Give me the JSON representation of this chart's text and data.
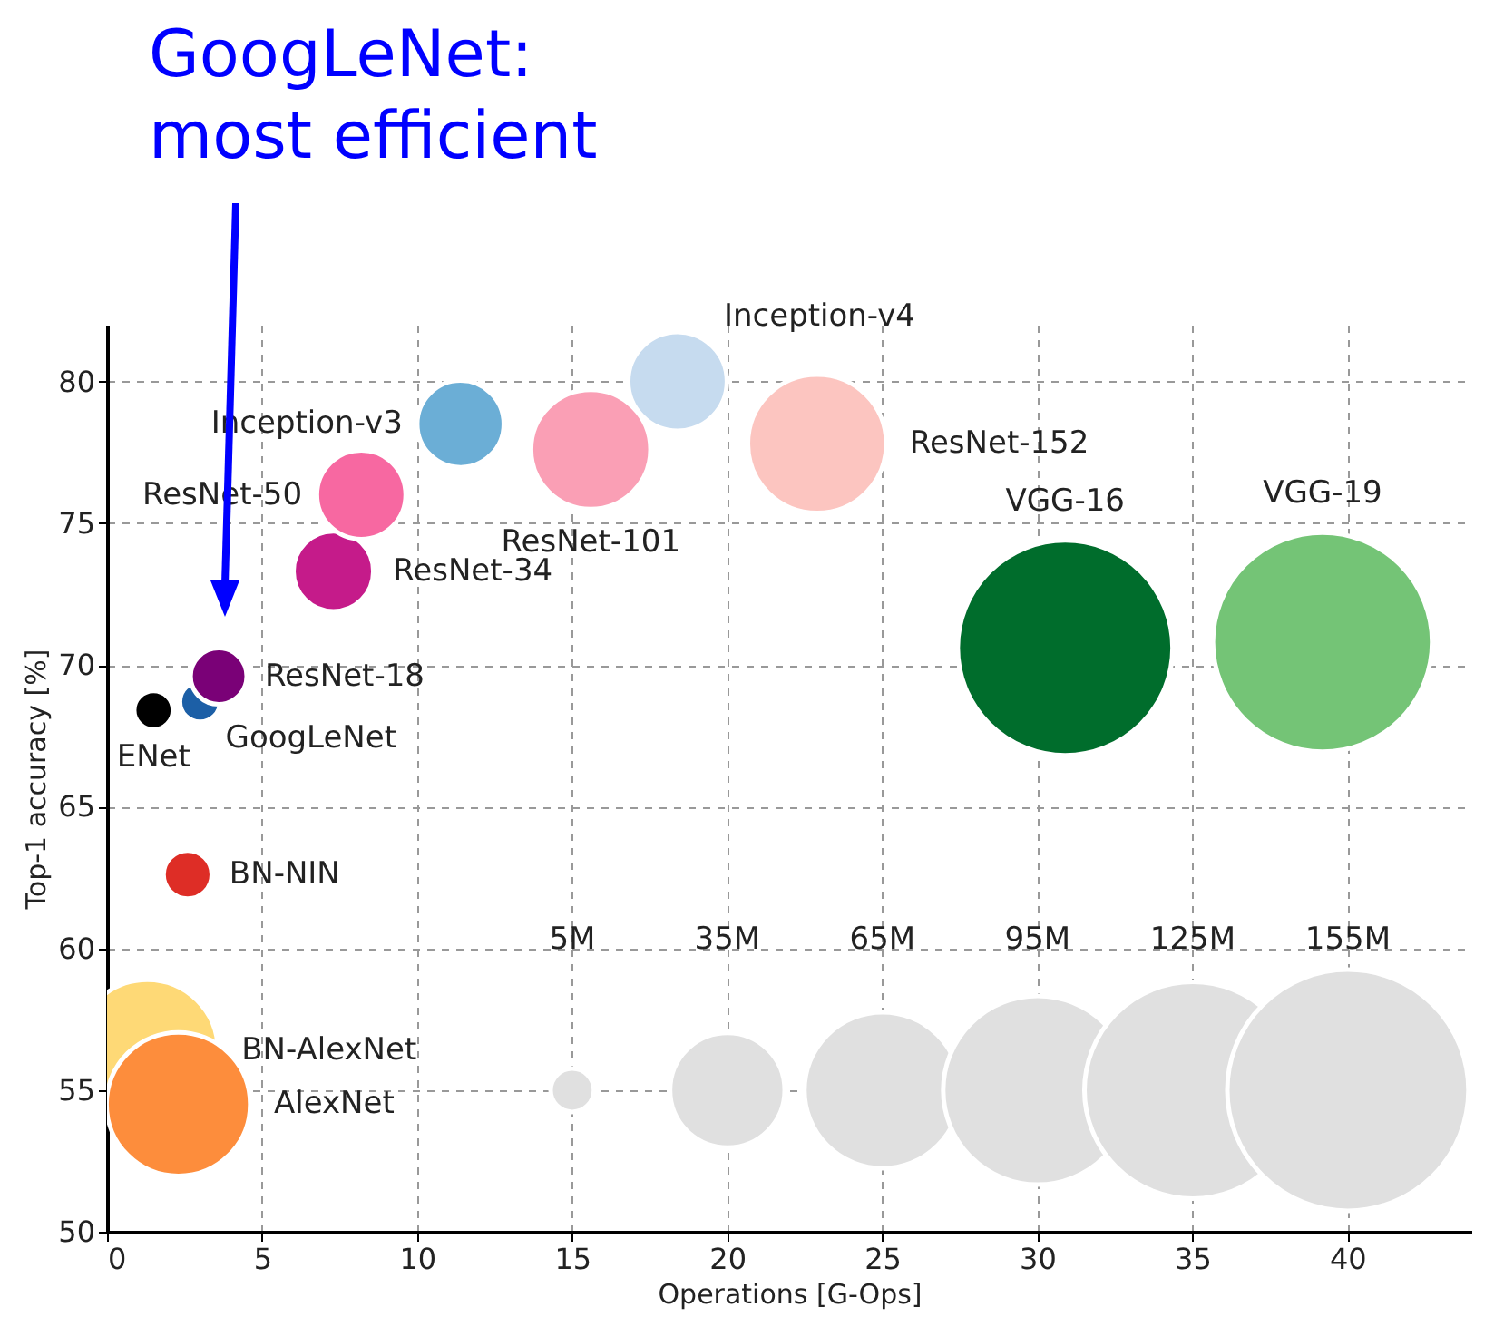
{
  "chart_data": {
    "type": "bubble",
    "xlabel": "Operations [G-Ops]",
    "ylabel": "Top-1 accuracy [%]",
    "annotations": [
      "GoogLeNet:\nmost efficient"
    ],
    "size_legend": [
      {
        "value": 5,
        "label": "5M"
      },
      {
        "value": 35,
        "label": "35M"
      },
      {
        "value": 65,
        "label": "65M"
      },
      {
        "value": 95,
        "label": "95M"
      },
      {
        "value": 125,
        "label": "125M"
      },
      {
        "value": 155,
        "label": "155M"
      }
    ],
    "xlim": [
      0,
      44
    ],
    "ylim": [
      50,
      82
    ],
    "xticks": [
      0,
      5,
      10,
      15,
      20,
      25,
      30,
      35,
      40
    ],
    "yticks": [
      50,
      55,
      60,
      65,
      70,
      75,
      80
    ],
    "grid": true,
    "series": [
      {
        "x": [
          1.5,
          3.0,
          3.6,
          7.3,
          8.2,
          11.4,
          15.6,
          18.4,
          22.9,
          30.9,
          39.2,
          2.6,
          1.3,
          2.3
        ],
        "values": [
          68.4,
          68.7,
          69.6,
          73.3,
          76.0,
          78.5,
          77.6,
          80.0,
          77.8,
          70.6,
          70.8,
          62.6,
          56.4,
          54.5
        ],
        "sizes": [
          4,
          4.3,
          8.4,
          17,
          21,
          20,
          38,
          26,
          51,
          123,
          128,
          6.2,
          53,
          55
        ],
        "colors": [
          "#000000",
          "#1c5fa6",
          "#7a0177",
          "#c51b8a",
          "#f768a1",
          "#6baed6",
          "#fa9fb5",
          "#c6dbef",
          "#fcc5c0",
          "#006d2c",
          "#74c476",
          "#de2d26",
          "#fed976",
          "#fd8d3c"
        ],
        "value_labels": [
          "ENet",
          "GoogLeNet",
          "ResNet-18",
          "ResNet-34",
          "ResNet-50",
          "Inception-v3",
          "ResNet-101",
          "Inception-v4",
          "ResNet-152",
          "VGG-16",
          "VGG-19",
          "BN-NIN",
          "BN-AlexNet",
          "AlexNet"
        ]
      }
    ]
  }
}
